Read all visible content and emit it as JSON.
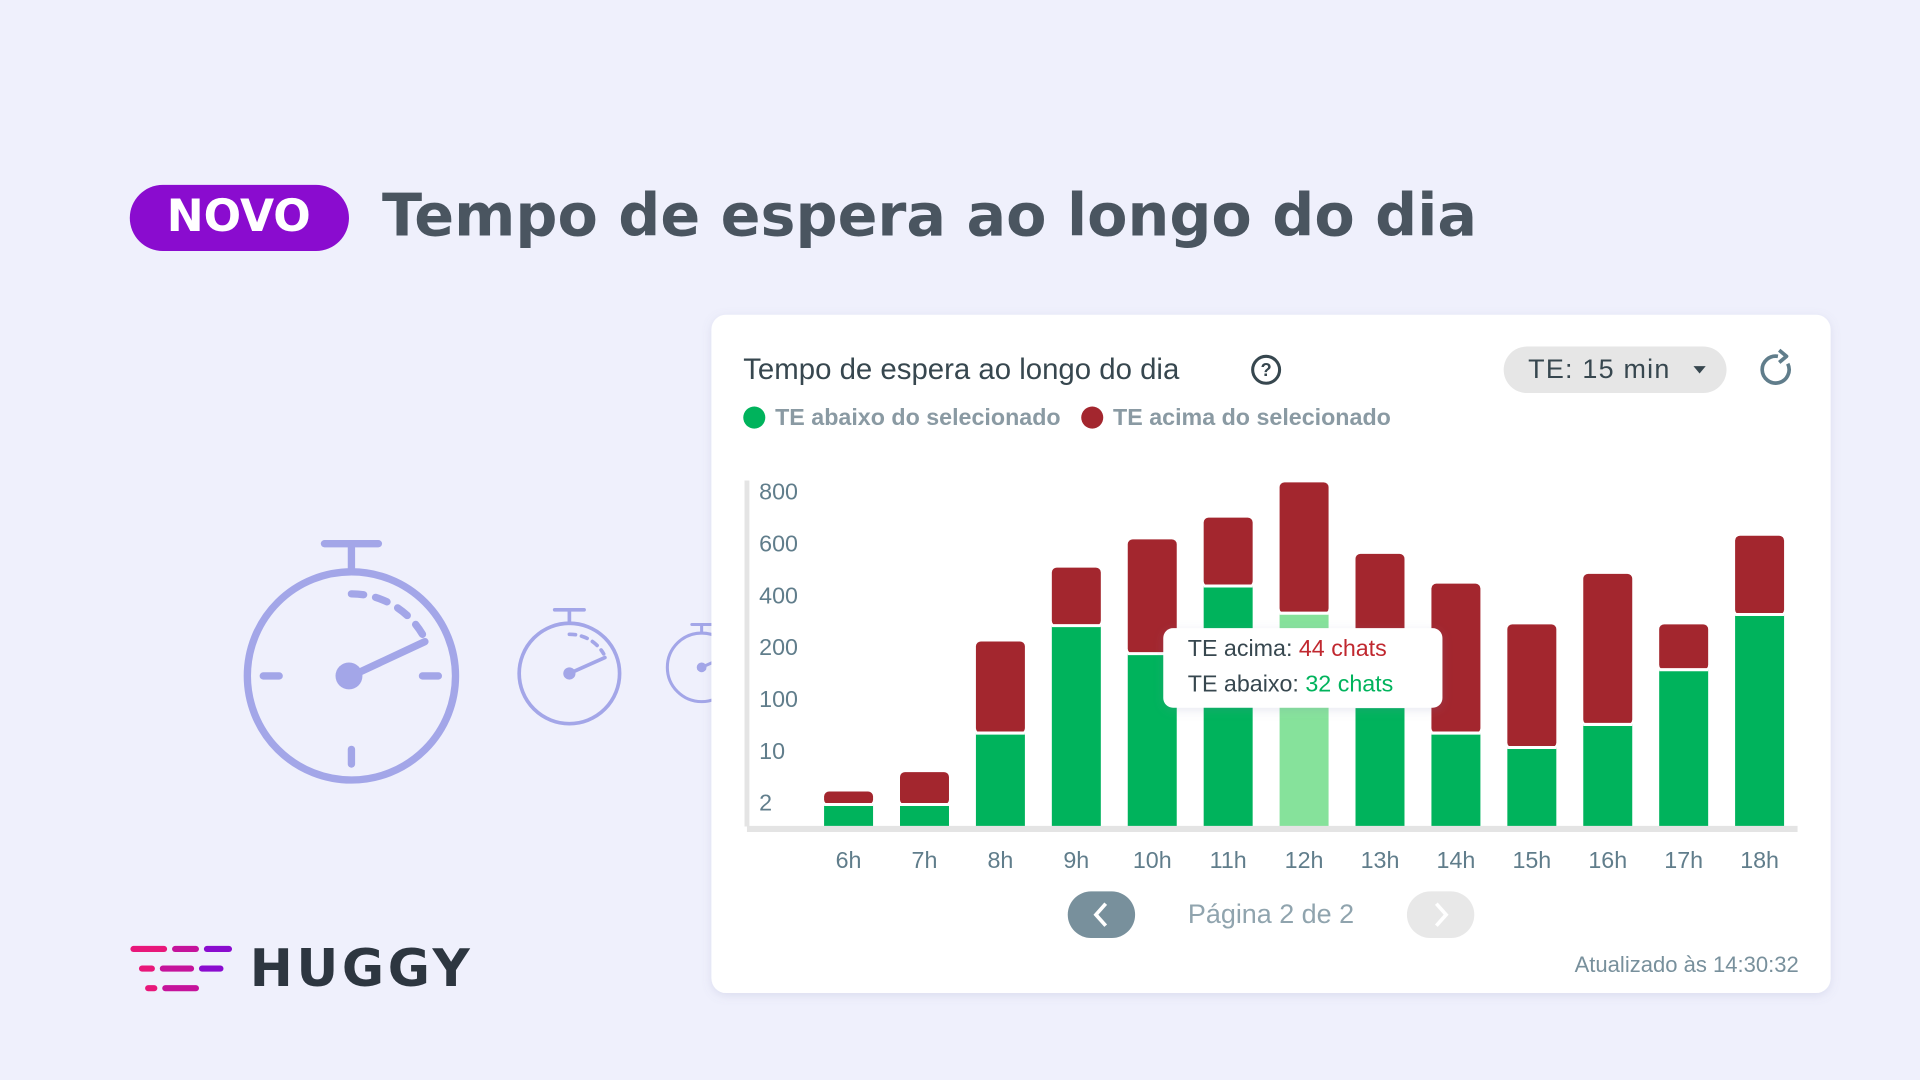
{
  "header": {
    "badge": "NOVO",
    "title": "Tempo de espera ao longo do dia"
  },
  "brand": "HUGGY",
  "chart_data": {
    "type": "bar",
    "stacked": true,
    "title": "Tempo de espera ao longo do dia",
    "filter": "TE: 15 min",
    "categories": [
      "6h",
      "7h",
      "8h",
      "9h",
      "10h",
      "11h",
      "12h",
      "13h",
      "14h",
      "15h",
      "16h",
      "17h",
      "18h"
    ],
    "series": [
      {
        "name": "TE abaixo do selecionado",
        "color": "#00b35c",
        "values": [
          2,
          2,
          44,
          290,
          191,
          443,
          338,
          90,
          44,
          19,
          59,
          160,
          333
        ]
      },
      {
        "name": "TE acima do selecionado",
        "color": "#a3262e",
        "values": [
          2,
          5,
          185,
          224,
          432,
          264,
          505,
          477,
          408,
          276,
          431,
          135,
          304
        ]
      }
    ],
    "highlighted_category": "12h",
    "highlight_color": "#86e29b",
    "ylim": [
      0,
      850
    ],
    "yticks": [
      2,
      10,
      100,
      200,
      400,
      600,
      800
    ],
    "tooltip": {
      "above_label": "TE acima:",
      "above_value": "44 chats",
      "below_label": "TE abaixo:",
      "below_value": "32 chats"
    },
    "pagination": "Página 2 de 2",
    "updated": "Atualizado às 14:30:32"
  }
}
